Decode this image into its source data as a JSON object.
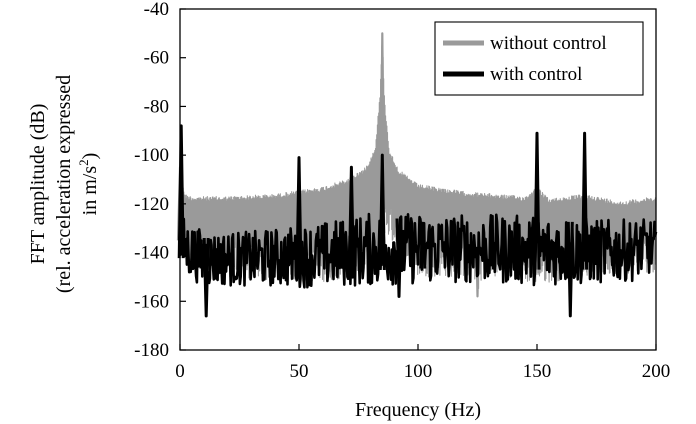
{
  "chart_data": {
    "type": "line",
    "xlabel": "Frequency (Hz)",
    "ylabel_lines": [
      "FFT amplitude  (dB)",
      "(rel. acceleration expressed",
      "in m/s",
      "2",
      ")"
    ],
    "xlim": [
      0,
      200
    ],
    "ylim": [
      -180,
      -40
    ],
    "x_ticks": [
      0,
      50,
      100,
      150,
      200
    ],
    "y_ticks": [
      -180,
      -160,
      -140,
      -120,
      -100,
      -80,
      -60,
      -40
    ],
    "grid": false,
    "legend_position": "top-right",
    "legend_box": true,
    "series": [
      {
        "name": "without control",
        "color": "#9a9a9a",
        "style": "dense noisy spectrum (envelope only)",
        "upper_envelope": {
          "x": [
            0,
            1,
            2,
            5,
            20,
            40,
            60,
            70,
            78,
            82,
            84,
            85,
            86,
            88,
            92,
            100,
            120,
            145,
            150,
            155,
            170,
            185,
            200
          ],
          "y": [
            -106,
            -110,
            -116,
            -117,
            -117,
            -116,
            -113,
            -110,
            -105,
            -97,
            -75,
            -50,
            -78,
            -98,
            -106,
            -112,
            -115,
            -117,
            -113,
            -118,
            -116,
            -119,
            -117
          ]
        },
        "lower_envelope": {
          "x": [
            0,
            3,
            20,
            40,
            60,
            84,
            86,
            100,
            123,
            125,
            127,
            150,
            170,
            200
          ],
          "y": [
            -143,
            -145,
            -150,
            -152,
            -152,
            -148,
            -132,
            -150,
            -150,
            -158,
            -150,
            -153,
            -150,
            -148
          ]
        },
        "peaks": {
          "x": [
            0,
            85,
            125,
            150
          ],
          "y": [
            -105,
            -50,
            -158,
            -112
          ]
        }
      },
      {
        "name": "with control",
        "color": "#000000",
        "style": "dense noisy spectrum (envelope only)",
        "upper_envelope": {
          "x": [
            0,
            2,
            10,
            30,
            45,
            60,
            80,
            100,
            140,
            160,
            180,
            200
          ],
          "y": [
            -118,
            -125,
            -130,
            -130,
            -128,
            -126,
            -122,
            -122,
            -123,
            -123,
            -125,
            -125
          ]
        },
        "lower_envelope": {
          "x": [
            0,
            10,
            30,
            60,
            90,
            120,
            150,
            170,
            190,
            200
          ],
          "y": [
            -150,
            -155,
            -155,
            -156,
            -155,
            -154,
            -155,
            -155,
            -153,
            -150
          ]
        },
        "peaks": {
          "x": [
            0.5,
            11,
            50,
            72,
            85,
            92,
            102,
            150,
            164,
            170
          ],
          "y": [
            -88,
            -166,
            -101,
            -105,
            -100,
            -158,
            -128,
            -91,
            -166,
            -91
          ]
        }
      }
    ]
  }
}
